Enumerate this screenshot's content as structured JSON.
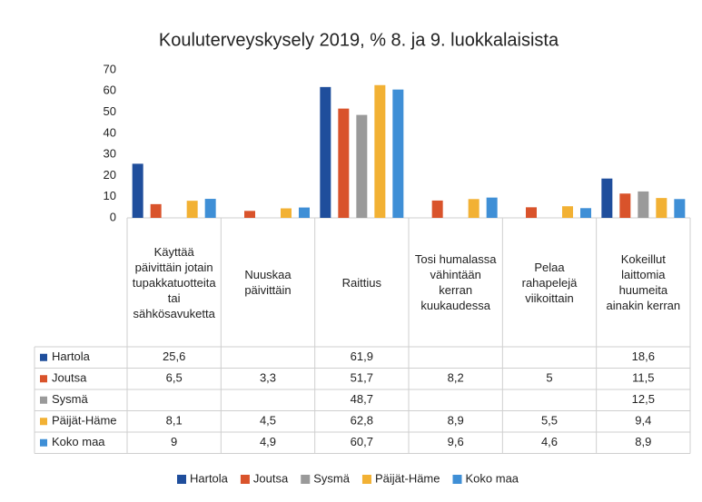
{
  "chart_data": {
    "type": "bar",
    "title": "Kouluterveyskysely 2019, % 8. ja 9. luokkalaisista",
    "categories": [
      "Käyttää päivittäin jotain tupakkatuotteita tai sähkösavuketta",
      "Nuuskaa päivittäin",
      "Raittius",
      "Tosi humalassa vähintään kerran kuukaudessa",
      "Pelaa rahapelejä viikoittain",
      "Kokeillut laittomia huumeita ainakin kerran"
    ],
    "series": [
      {
        "name": "Hartola",
        "color": "#1f4e9c",
        "values": [
          25.6,
          null,
          61.9,
          null,
          null,
          18.6
        ],
        "value_labels": [
          "25,6",
          null,
          "61,9",
          null,
          null,
          "18,6"
        ]
      },
      {
        "name": "Joutsa",
        "color": "#d9532b",
        "values": [
          6.5,
          3.3,
          51.7,
          8.2,
          5,
          11.5
        ],
        "value_labels": [
          "6,5",
          "3,3",
          "51,7",
          "8,2",
          "5",
          "11,5"
        ]
      },
      {
        "name": "Sysmä",
        "color": "#9a9a9a",
        "values": [
          null,
          null,
          48.7,
          null,
          null,
          12.5
        ],
        "value_labels": [
          null,
          null,
          "48,7",
          null,
          null,
          "12,5"
        ]
      },
      {
        "name": "Päijät-Häme",
        "color": "#f2b134",
        "values": [
          8.1,
          4.5,
          62.8,
          8.9,
          5.5,
          9.4
        ],
        "value_labels": [
          "8,1",
          "4,5",
          "62,8",
          "8,9",
          "5,5",
          "9,4"
        ]
      },
      {
        "name": "Koko maa",
        "color": "#3f8fd6",
        "values": [
          9,
          4.9,
          60.7,
          9.6,
          4.6,
          8.9
        ],
        "value_labels": [
          "9",
          "4,9",
          "60,7",
          "9,6",
          "4,6",
          "8,9"
        ]
      }
    ],
    "ylim": [
      0,
      70
    ],
    "yticks": [
      0,
      10,
      20,
      30,
      40,
      50,
      60,
      70
    ],
    "grid": false,
    "legend": "bottom"
  }
}
